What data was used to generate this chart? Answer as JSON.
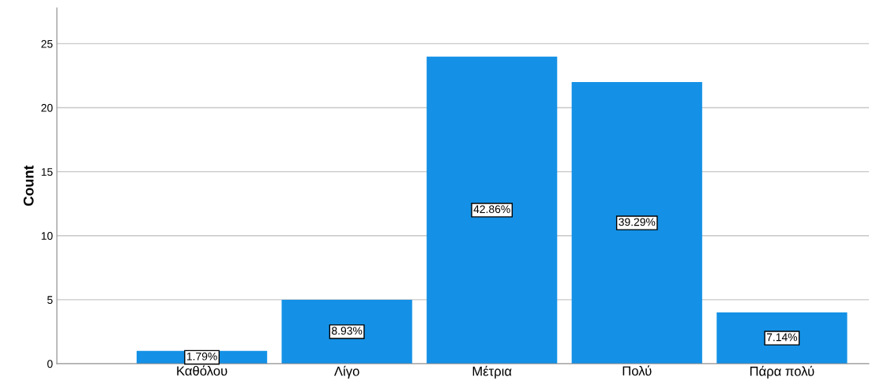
{
  "chart_data": {
    "type": "bar",
    "ylabel": "Count",
    "categories": [
      "Καθόλου",
      "Λίγο",
      "Μέτρια",
      "Πολύ",
      "Πάρα πολύ"
    ],
    "values": [
      1,
      5,
      24,
      22,
      4
    ],
    "annotations": [
      "1.79%",
      "8.93%",
      "42.86%",
      "39.29%",
      "7.14%"
    ],
    "color": "#1491e6",
    "ylim": [
      0,
      27.8
    ],
    "yticks": [
      0,
      5,
      10,
      15,
      20,
      25
    ],
    "grid": "y"
  }
}
